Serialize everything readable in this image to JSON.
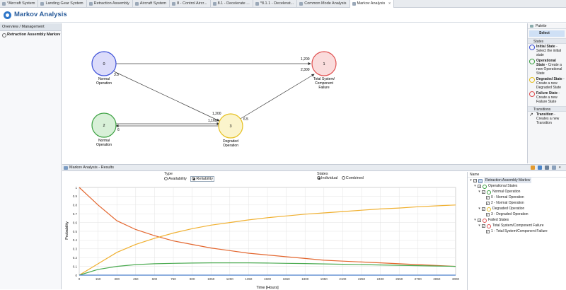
{
  "tabs": [
    {
      "label": "*Aircraft System",
      "active": false
    },
    {
      "label": "Landing Gear System",
      "active": false
    },
    {
      "label": "Retraction Assembly",
      "active": false
    },
    {
      "label": "Aircraft System",
      "active": false
    },
    {
      "label": "8 - Control Aircr...",
      "active": false
    },
    {
      "label": "8.1 - Decelerate ...",
      "active": false
    },
    {
      "label": "*8.1.1 - Decelerat...",
      "active": false
    },
    {
      "label": "Common Mode Analysis",
      "active": false
    },
    {
      "label": "Markov Analysis",
      "active": true,
      "close": "x"
    }
  ],
  "header": {
    "title": "Markov Analysis"
  },
  "left_panel": {
    "section": "Overview / Management",
    "item": "Retraction Assembly Markov"
  },
  "diagram": {
    "nodes": [
      {
        "id": "0",
        "label": "Normal\nOperation",
        "label_lines": [
          "Normal",
          "Operation"
        ],
        "color": "#3b4fd8",
        "fill": "#dcdcfa"
      },
      {
        "id": "1",
        "label_lines": [
          "Total System/",
          "Component",
          "Failure"
        ],
        "color": "#e05050",
        "fill": "#fadcdc"
      },
      {
        "id": "2",
        "label_lines": [
          "Normal",
          "Operation"
        ],
        "color": "#3aa040",
        "fill": "#d8f0d8"
      },
      {
        "id": "3",
        "label_lines": [
          "Degraded",
          "Operation"
        ],
        "color": "#e6c020",
        "fill": "#fbf4cc"
      }
    ],
    "edge_labels": [
      "1,200",
      "2,300",
      "3.5",
      "1,200",
      "1,160",
      "6.5",
      "6"
    ]
  },
  "palette": {
    "title": "Palette",
    "select": "Select",
    "states_title": "States",
    "states": [
      {
        "name": "Initial State",
        "desc": "Select the initial state",
        "color": "#3b4fd8"
      },
      {
        "name": "Operational State",
        "desc": "Create a new Operational State",
        "color": "#3aa040"
      },
      {
        "name": "Degraded State",
        "desc": "Create a new Degraded State",
        "color": "#e6c020"
      },
      {
        "name": "Failure State",
        "desc": "Create a new Failure State",
        "color": "#e05050"
      }
    ],
    "transitions_title": "Transitions",
    "transition": {
      "name": "Transition",
      "desc": "Creates a new Transition"
    }
  },
  "results": {
    "title": "Markov Analysis - Results",
    "type_label": "Type",
    "type_options": [
      "Availability",
      "Reliability"
    ],
    "type_selected": "Reliability",
    "states_label": "States",
    "states_options": [
      "Individual",
      "Combined"
    ],
    "states_selected": "Individual"
  },
  "chart_data": {
    "type": "line",
    "xlabel": "Time [Hours]",
    "ylabel": "Probability",
    "xlim": [
      0,
      3000
    ],
    "ylim": [
      0,
      1
    ],
    "x_ticks": [
      0,
      150,
      300,
      450,
      600,
      750,
      900,
      1050,
      1200,
      1350,
      1500,
      1650,
      1800,
      1950,
      2100,
      2250,
      2400,
      2550,
      2700,
      2850,
      3000
    ],
    "y_ticks": [
      0,
      0.1,
      0.2,
      0.3,
      0.4,
      0.5,
      0.6,
      0.7,
      0.8,
      0.9,
      1
    ],
    "grid": true,
    "series": [
      {
        "color": "#e3662e",
        "x": [
          0,
          150,
          300,
          450,
          600,
          750,
          900,
          1050,
          1200,
          1350,
          1500,
          1650,
          1800,
          1950,
          2100,
          2250,
          2400,
          2550,
          2700,
          2850,
          3000
        ],
        "y": [
          1,
          0.8,
          0.62,
          0.52,
          0.45,
          0.39,
          0.35,
          0.31,
          0.28,
          0.25,
          0.23,
          0.21,
          0.19,
          0.17,
          0.16,
          0.15,
          0.14,
          0.13,
          0.12,
          0.11,
          0.1
        ]
      },
      {
        "color": "#f0b030",
        "x": [
          0,
          150,
          300,
          450,
          600,
          750,
          900,
          1050,
          1200,
          1350,
          1500,
          1650,
          1800,
          1950,
          2100,
          2250,
          2400,
          2550,
          2700,
          2850,
          3000
        ],
        "y": [
          0,
          0.13,
          0.26,
          0.35,
          0.42,
          0.48,
          0.53,
          0.57,
          0.6,
          0.63,
          0.655,
          0.675,
          0.695,
          0.71,
          0.725,
          0.74,
          0.755,
          0.765,
          0.78,
          0.79,
          0.8
        ]
      },
      {
        "color": "#4aaa50",
        "x": [
          0,
          150,
          300,
          450,
          600,
          750,
          900,
          1050,
          1200,
          1350,
          1500,
          1650,
          1800,
          1950,
          2100,
          2250,
          2400,
          2550,
          2700,
          2850,
          3000
        ],
        "y": [
          0,
          0.065,
          0.1,
          0.12,
          0.13,
          0.135,
          0.138,
          0.14,
          0.14,
          0.14,
          0.138,
          0.135,
          0.132,
          0.128,
          0.124,
          0.12,
          0.116,
          0.112,
          0.108,
          0.104,
          0.1
        ]
      },
      {
        "color": "#4a7fcc",
        "x": [
          0,
          3000
        ],
        "y": [
          0,
          0
        ]
      }
    ]
  },
  "tree": {
    "header": "Name",
    "nodes": [
      {
        "label": "Retraction Assembly Markov",
        "level": 0,
        "icon": "markov",
        "selected": true
      },
      {
        "label": "Operational States",
        "level": 1,
        "icon": "#3aa040"
      },
      {
        "label": "Normal Operation",
        "level": 2,
        "icon": "#3aa040"
      },
      {
        "label": "0 - Normal Operation",
        "level": 3,
        "icon": ""
      },
      {
        "label": "2 - Normal Operation",
        "level": 3,
        "icon": ""
      },
      {
        "label": "Degraded Operation",
        "level": 2,
        "icon": "#e6c020"
      },
      {
        "label": "3 - Degraded Operation",
        "level": 3,
        "icon": ""
      },
      {
        "label": "Failed States",
        "level": 1,
        "icon": "#e05050"
      },
      {
        "label": "Total System/Component Failure",
        "level": 2,
        "icon": "#e05050"
      },
      {
        "label": "1 - Total System/Component Failure",
        "level": 3,
        "icon": ""
      }
    ]
  }
}
